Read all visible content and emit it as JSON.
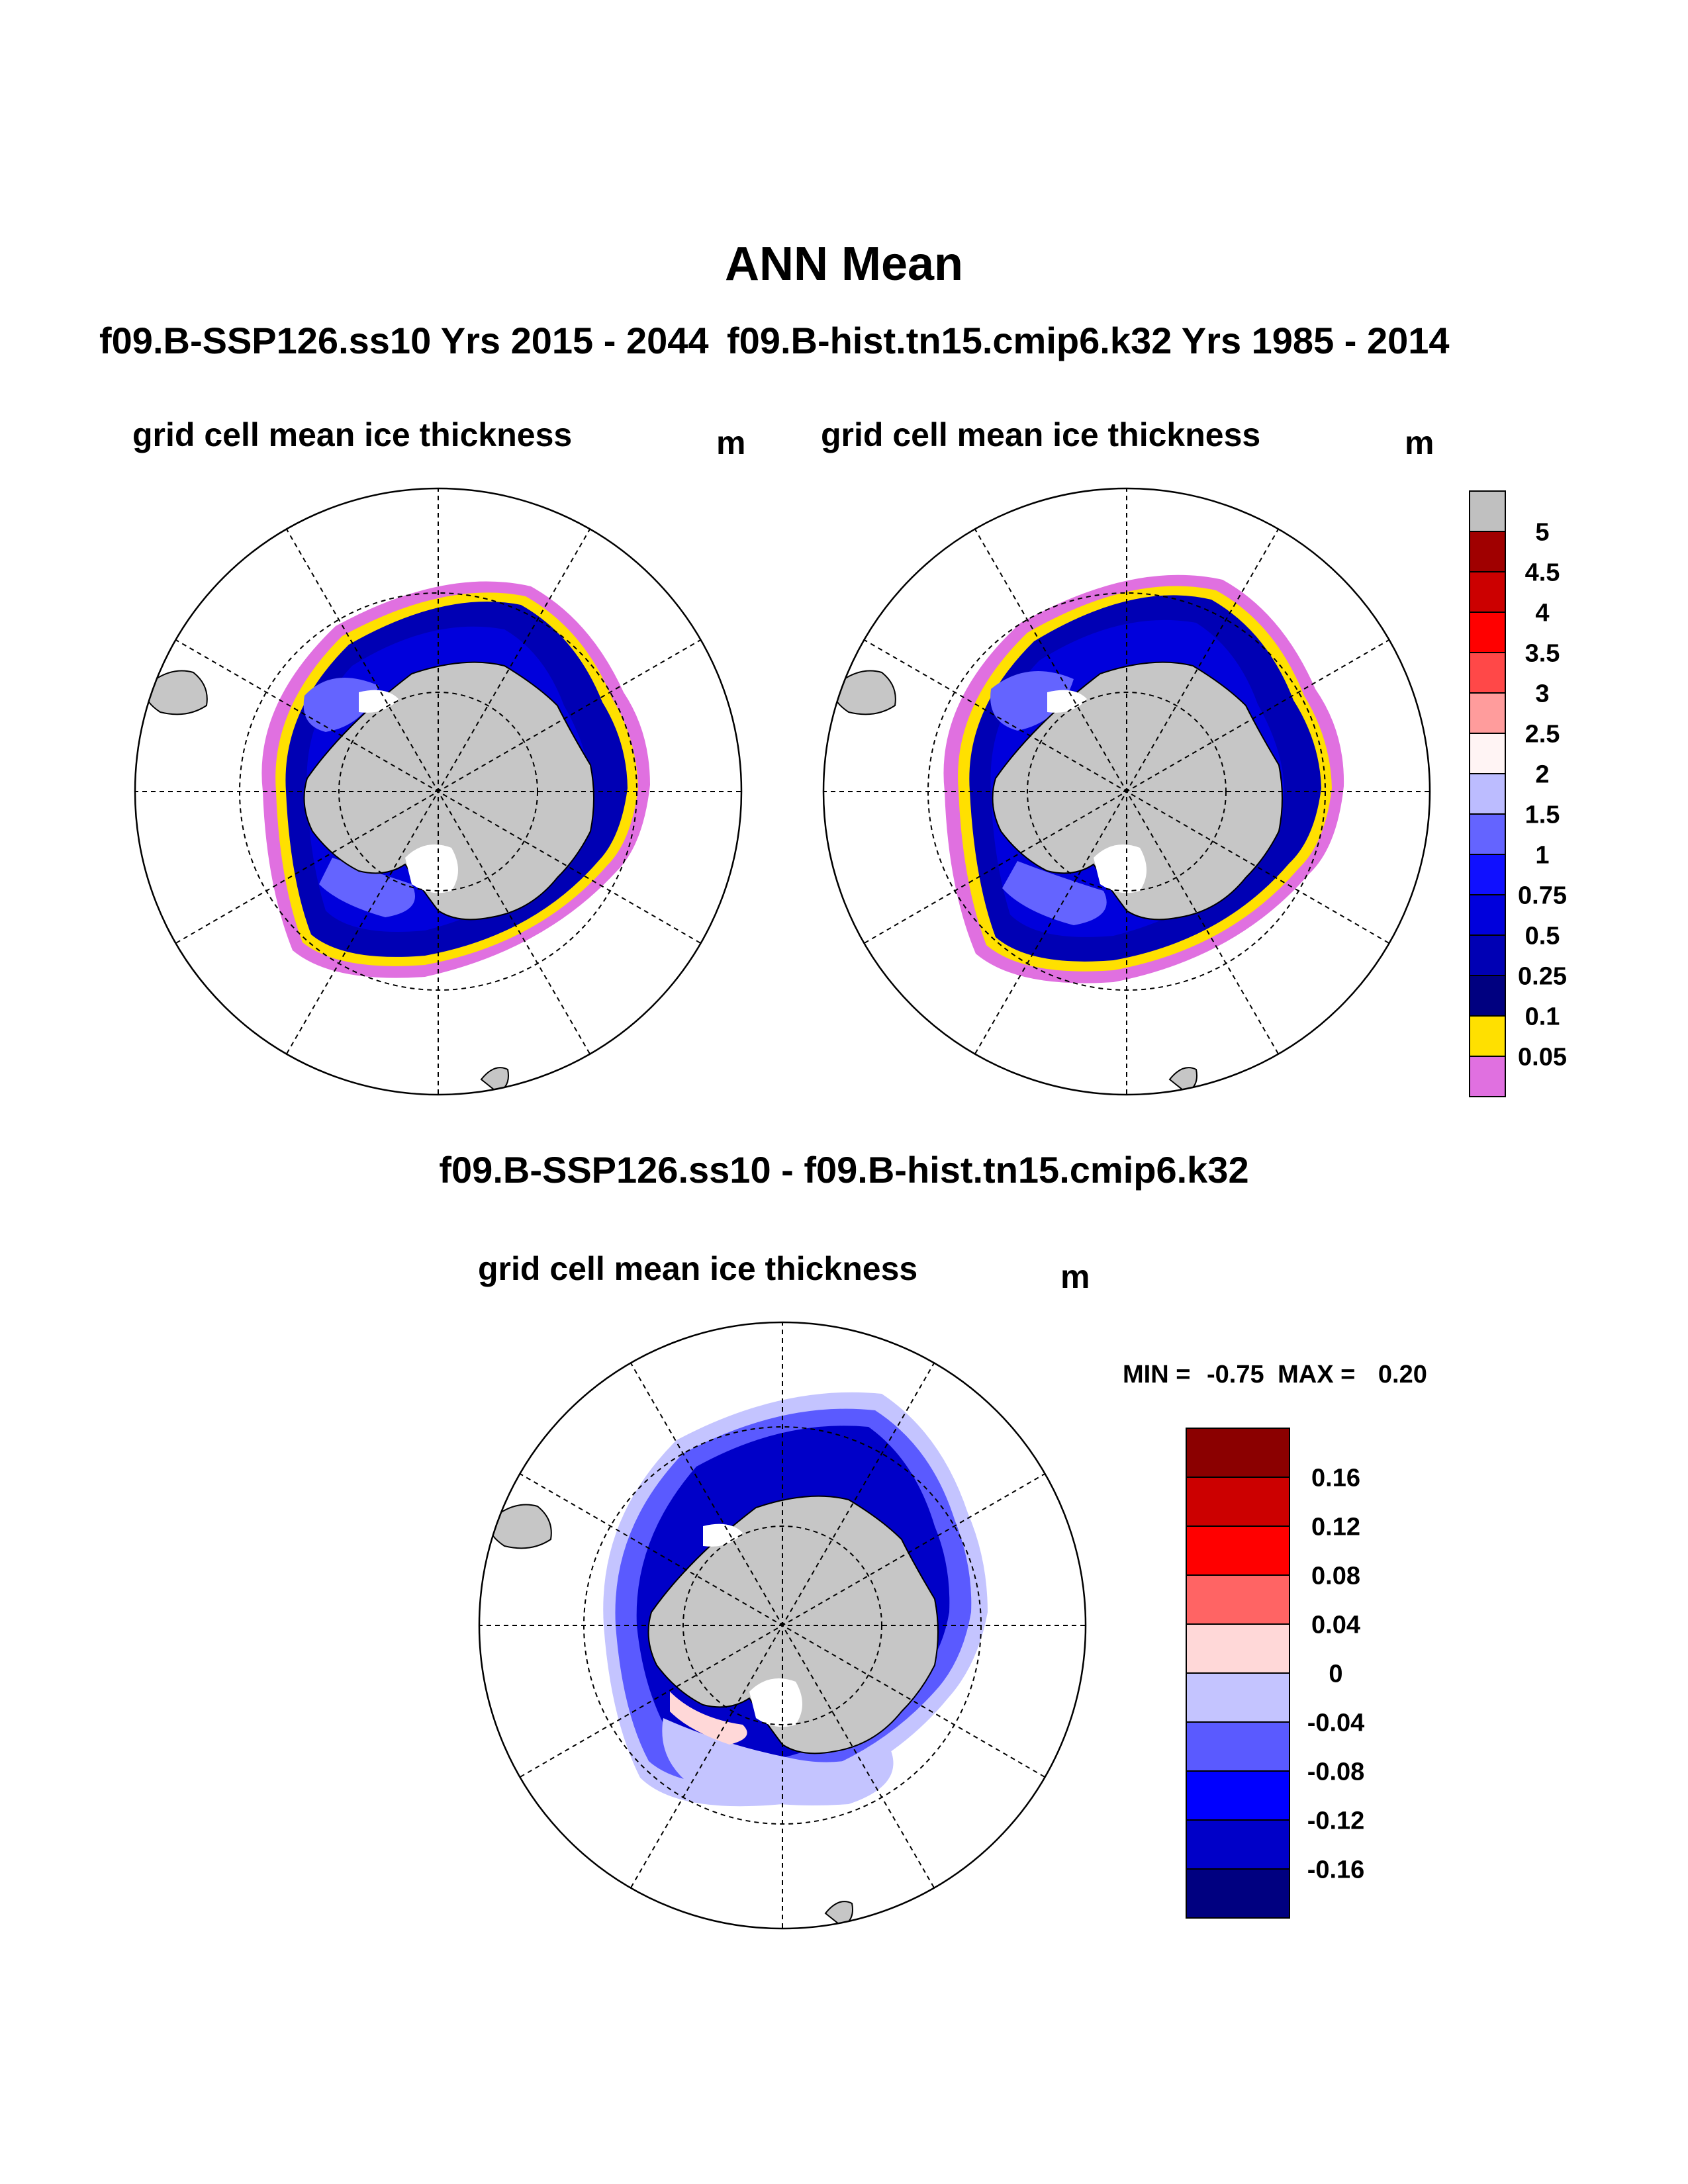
{
  "header": {
    "title": "ANN Mean"
  },
  "panels": [
    {
      "run": "f09.B-SSP126.ss10  Yrs 2015 - 2044",
      "variable": "grid cell mean ice thickness",
      "unit": "m"
    },
    {
      "run": "f09.B-hist.tn15.cmip6.k32  Yrs 1985 - 2014",
      "variable": "grid cell mean ice thickness",
      "unit": "m"
    }
  ],
  "difference": {
    "title": "f09.B-SSP126.ss10 - f09.B-hist.tn15.cmip6.k32",
    "variable": "grid cell mean ice thickness",
    "unit": "m",
    "min_label": "MIN =",
    "min_value": "-0.75",
    "max_label": "MAX =",
    "max_value": "0.20"
  },
  "legend_thickness": {
    "labels": [
      "5",
      "4.5",
      "4",
      "3.5",
      "3",
      "2.5",
      "2",
      "1.5",
      "1",
      "0.75",
      "0.5",
      "0.25",
      "0.1",
      "0.05"
    ],
    "colors": [
      "#c0c0c0",
      "#a00000",
      "#cc0000",
      "#ff0000",
      "#ff4848",
      "#ff9c9c",
      "#fff4f4",
      "#bcbcff",
      "#6464ff",
      "#1010ff",
      "#0000dc",
      "#0000b4",
      "#000080",
      "#ffe000",
      "#e070e0"
    ]
  },
  "legend_diff": {
    "labels": [
      "0.16",
      "0.12",
      "0.08",
      "0.04",
      "0",
      "-0.04",
      "-0.08",
      "-0.12",
      "-0.16"
    ],
    "colors": [
      "#8b0000",
      "#cc0000",
      "#ff0000",
      "#ff6464",
      "#ffd8d8",
      "#c4c4ff",
      "#5a5aff",
      "#0000ff",
      "#0000c8",
      "#000080"
    ]
  },
  "colors": {
    "land": "#c6c6c6",
    "ice_shelf": "#ffffff",
    "ice_dark": "#0000b4",
    "ice_mid": "#0000dc",
    "ice_light": "#6464ff",
    "edge_yellow": "#ffe000",
    "edge_pink": "#e070e0",
    "diff_light": "#c4c4ff",
    "diff_mid": "#5a5aff",
    "diff_dark": "#0000c8"
  }
}
